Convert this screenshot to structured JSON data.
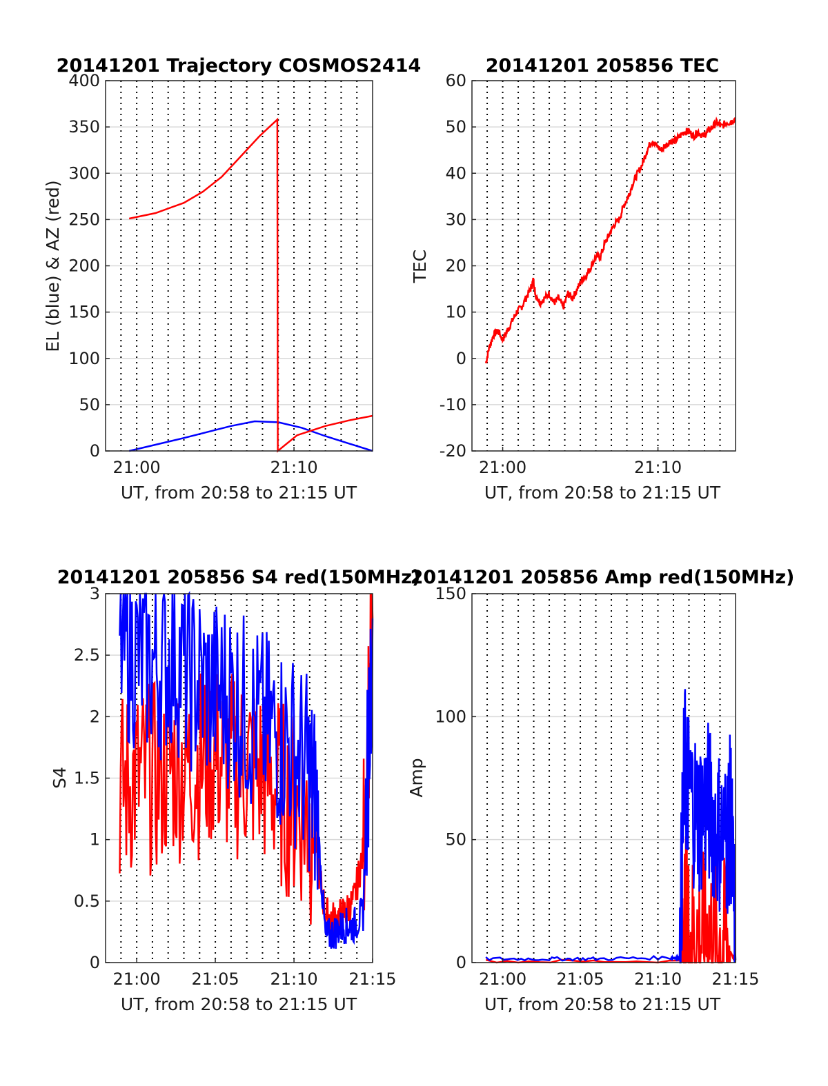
{
  "figure": {
    "background": "#ffffff"
  },
  "colors": {
    "el": "#0000ff",
    "az": "#ff0000",
    "tec": "#ff0000",
    "red": "#ff0000",
    "blue": "#0000ff",
    "grid_v": "#000000",
    "grid_h": "#d9d9d9"
  },
  "chart_data": [
    {
      "id": "traj",
      "type": "line",
      "title": "20141201 Trajectory COSMOS2414",
      "xlabel": "UT, from 20:58 to 21:15 UT",
      "ylabel": "EL (blue) & AZ (red)",
      "xlim": [
        20.967,
        21.25
      ],
      "ylim": [
        0,
        400
      ],
      "yticks": [
        0,
        50,
        100,
        150,
        200,
        250,
        300,
        350,
        400
      ],
      "ytick_labels": [
        "0",
        "50",
        "100",
        "150",
        "200",
        "250",
        "300",
        "350",
        "400"
      ],
      "xticks": [
        21.0,
        21.1667
      ],
      "xtick_labels": [
        "21:00",
        "21:10"
      ],
      "grid": true,
      "series": [
        {
          "name": "EL",
          "color": "#0000ff",
          "x": [
            20.992,
            21.05,
            21.1,
            21.125,
            21.15,
            21.175,
            21.2,
            21.25
          ],
          "y": [
            0,
            14,
            27,
            32,
            31,
            25,
            16,
            0
          ]
        },
        {
          "name": "AZ",
          "color": "#ff0000",
          "x": [
            20.992,
            21.02,
            21.05,
            21.07,
            21.09,
            21.11,
            21.13,
            21.149,
            21.1495,
            21.17,
            21.2,
            21.225,
            21.25
          ],
          "y": [
            251,
            257,
            268,
            280,
            296,
            318,
            340,
            358,
            0,
            17,
            27,
            33,
            38
          ]
        }
      ]
    },
    {
      "id": "tec",
      "type": "line",
      "title": "20141201 205856 TEC",
      "xlabel": "UT, from 20:58 to 21:15 UT",
      "ylabel": "TEC",
      "xlim": [
        20.967,
        21.25
      ],
      "ylim": [
        -20,
        60
      ],
      "yticks": [
        -20,
        -10,
        0,
        10,
        20,
        30,
        40,
        50,
        60
      ],
      "ytick_labels": [
        "-20",
        "-10",
        "0",
        "10",
        "20",
        "30",
        "40",
        "50",
        "60"
      ],
      "xticks": [
        21.0,
        21.1667
      ],
      "xtick_labels": [
        "21:00",
        "21:10"
      ],
      "grid": true,
      "series": [
        {
          "name": "TEC",
          "color": "#ff0000",
          "x": [
            20.982,
            20.985,
            20.99,
            20.995,
            21.0,
            21.005,
            21.01,
            21.015,
            21.02,
            21.025,
            21.03,
            21.033,
            21.035,
            21.04,
            21.045,
            21.05,
            21.055,
            21.06,
            21.065,
            21.07,
            21.075,
            21.08,
            21.085,
            21.09,
            21.095,
            21.1,
            21.105,
            21.11,
            21.115,
            21.12,
            21.125,
            21.13,
            21.135,
            21.14,
            21.145,
            21.15,
            21.155,
            21.16,
            21.165,
            21.17,
            21.175,
            21.18,
            21.185,
            21.19,
            21.195,
            21.2,
            21.205,
            21.21,
            21.215,
            21.22,
            21.225,
            21.23,
            21.235,
            21.24,
            21.245,
            21.25
          ],
          "y": [
            -1,
            2,
            5,
            6,
            4,
            6,
            8,
            10,
            11,
            13,
            15,
            17,
            14,
            12,
            13,
            14,
            12,
            13,
            11,
            14,
            13,
            15,
            17,
            18,
            20,
            22,
            22,
            25,
            27,
            29,
            30,
            33,
            35,
            38,
            40,
            42,
            45,
            47,
            46,
            45,
            46,
            47,
            47,
            48,
            49,
            49,
            48,
            49,
            48,
            49,
            50,
            51,
            50,
            51,
            51,
            52
          ]
        }
      ]
    },
    {
      "id": "s4",
      "type": "line",
      "title": "20141201 205856 S4 red(150MHz)",
      "xlabel": "UT, from 20:58 to 21:15 UT",
      "ylabel": "S4",
      "xlim": [
        20.967,
        21.25
      ],
      "ylim": [
        0,
        3
      ],
      "yticks": [
        0,
        0.5,
        1,
        1.5,
        2,
        2.5,
        3
      ],
      "ytick_labels": [
        "0",
        "0.5",
        "1",
        "1.5",
        "2",
        "2.5",
        "3"
      ],
      "xticks": [
        21.0,
        21.0833,
        21.1667,
        21.25
      ],
      "xtick_labels": [
        "21:00",
        "21:05",
        "21:10",
        "21:15"
      ],
      "grid": true,
      "series": [
        {
          "name": "red",
          "color": "#ff0000",
          "x": [
            20.982,
            21.0,
            21.02,
            21.04,
            21.06,
            21.08,
            21.1,
            21.12,
            21.14,
            21.16,
            21.18,
            21.19,
            21.2,
            21.21,
            21.22,
            21.23,
            21.24,
            21.25
          ],
          "y": [
            1.4,
            1.5,
            1.5,
            1.6,
            1.6,
            1.7,
            1.6,
            1.6,
            1.5,
            1.3,
            1.2,
            0.9,
            0.4,
            0.35,
            0.4,
            0.5,
            0.9,
            2.8
          ]
        },
        {
          "name": "blue",
          "color": "#0000ff",
          "x": [
            20.982,
            21.0,
            21.02,
            21.04,
            21.06,
            21.08,
            21.1,
            21.12,
            21.14,
            21.16,
            21.18,
            21.19,
            21.2,
            21.21,
            21.22,
            21.23,
            21.24,
            21.25
          ],
          "y": [
            2.6,
            2.5,
            2.4,
            2.5,
            2.3,
            2.2,
            2.2,
            2.0,
            1.9,
            1.8,
            1.6,
            1.3,
            0.2,
            0.25,
            0.3,
            0.3,
            0.4,
            2.8
          ]
        }
      ]
    },
    {
      "id": "amp",
      "type": "line",
      "title": "20141201 205856 Amp red(150MHz)",
      "xlabel": "UT, from 20:58 to 21:15 UT",
      "ylabel": "Amp",
      "xlim": [
        20.967,
        21.25
      ],
      "ylim": [
        0,
        150
      ],
      "yticks": [
        0,
        50,
        100,
        150
      ],
      "ytick_labels": [
        "0",
        "50",
        "100",
        "150"
      ],
      "xticks": [
        21.0,
        21.0833,
        21.1667,
        21.25
      ],
      "xtick_labels": [
        "21:00",
        "21:05",
        "21:10",
        "21:15"
      ],
      "grid": true,
      "series": [
        {
          "name": "red",
          "color": "#ff0000",
          "x": [
            20.982,
            21.19,
            21.195,
            21.2,
            21.21,
            21.22,
            21.23,
            21.24,
            21.25
          ],
          "y": [
            0.5,
            0.5,
            20,
            12,
            10,
            12,
            9,
            8,
            0.5
          ]
        },
        {
          "name": "blue",
          "color": "#0000ff",
          "x": [
            20.982,
            21.05,
            21.1,
            21.18,
            21.19,
            21.195,
            21.2,
            21.21,
            21.22,
            21.23,
            21.24,
            21.245,
            21.25
          ],
          "y": [
            1.5,
            1.5,
            1.5,
            2,
            2,
            80,
            70,
            60,
            65,
            55,
            50,
            60,
            1
          ]
        }
      ]
    }
  ]
}
